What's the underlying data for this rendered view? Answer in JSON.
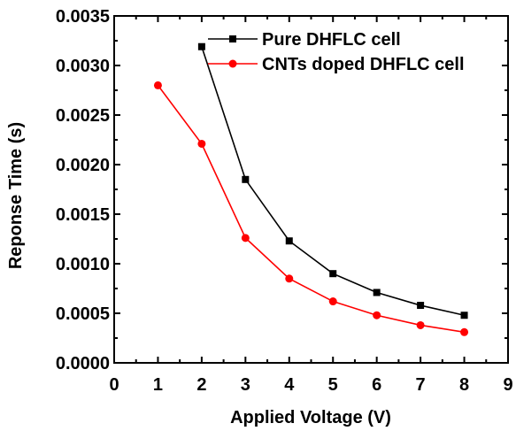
{
  "chart_data": {
    "type": "line",
    "xlabel": "Applied Voltage (V)",
    "ylabel": "Reponse Time (s)",
    "xlim": [
      0,
      9
    ],
    "ylim": [
      0,
      0.0035
    ],
    "x_ticks": [
      "0",
      "1",
      "2",
      "3",
      "4",
      "5",
      "6",
      "7",
      "8",
      "9"
    ],
    "y_ticks": [
      "0.0000",
      "0.0005",
      "0.0010",
      "0.0015",
      "0.0020",
      "0.0025",
      "0.0030",
      "0.0035"
    ],
    "grid": false,
    "legend_position": "top-right",
    "series": [
      {
        "name": "Pure DHFLC cell",
        "marker": "square",
        "color": "#000000",
        "x": [
          2,
          3,
          4,
          5,
          6,
          7,
          8
        ],
        "y": [
          0.00319,
          0.00185,
          0.00123,
          0.0009,
          0.00071,
          0.00058,
          0.00048
        ]
      },
      {
        "name": "CNTs doped DHFLC cell",
        "marker": "circle",
        "color": "#ff0000",
        "x": [
          1,
          2,
          3,
          4,
          5,
          6,
          7,
          8
        ],
        "y": [
          0.0028,
          0.00221,
          0.00126,
          0.00085,
          0.00062,
          0.00048,
          0.00038,
          0.00031
        ]
      }
    ]
  }
}
